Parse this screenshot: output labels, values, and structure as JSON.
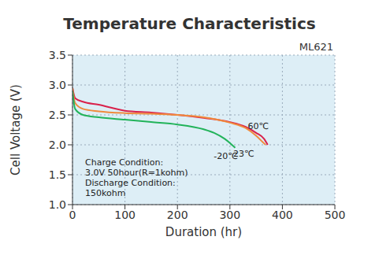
{
  "chart_data": {
    "type": "line",
    "title": "Temperature Characteristics",
    "subtitle": "ML621",
    "x_label": "Duration (hr)",
    "y_label": "Cell Voltage (V)",
    "xlim": [
      0,
      500
    ],
    "ylim": [
      1,
      3.5
    ],
    "xticks": [
      0,
      100,
      200,
      300,
      400,
      500
    ],
    "yticks": [
      {
        "value": 1,
        "label": "1.0"
      },
      1.5,
      {
        "value": 2,
        "label": "2.0"
      },
      2.5,
      {
        "value": 3,
        "label": "3.0"
      },
      3.5
    ],
    "grid": true,
    "annotations": [
      "Charge Condition:",
      "3.0V 50hour(R=1kohm)",
      "Discharge Condition:",
      "150kohm"
    ],
    "series": [
      {
        "name": "60℃",
        "color": "#d9214b",
        "x": [
          0,
          5,
          20,
          50,
          100,
          150,
          200,
          250,
          300,
          330,
          350,
          365,
          372
        ],
        "values": [
          2.95,
          2.78,
          2.72,
          2.67,
          2.57,
          2.54,
          2.5,
          2.45,
          2.38,
          2.3,
          2.2,
          2.1,
          2.0
        ]
      },
      {
        "name": "23℃",
        "color": "#f08a3c",
        "x": [
          0,
          5,
          20,
          50,
          100,
          150,
          200,
          250,
          300,
          330,
          350,
          362,
          368
        ],
        "values": [
          2.95,
          2.7,
          2.6,
          2.56,
          2.53,
          2.52,
          2.5,
          2.46,
          2.37,
          2.28,
          2.15,
          2.05,
          2.0
        ]
      },
      {
        "name": "-20℃",
        "color": "#22b35a",
        "x": [
          0,
          5,
          20,
          50,
          100,
          150,
          200,
          250,
          270,
          290,
          300,
          310
        ],
        "values": [
          2.9,
          2.6,
          2.5,
          2.46,
          2.42,
          2.38,
          2.34,
          2.26,
          2.2,
          2.1,
          2.03,
          1.95
        ]
      }
    ]
  }
}
